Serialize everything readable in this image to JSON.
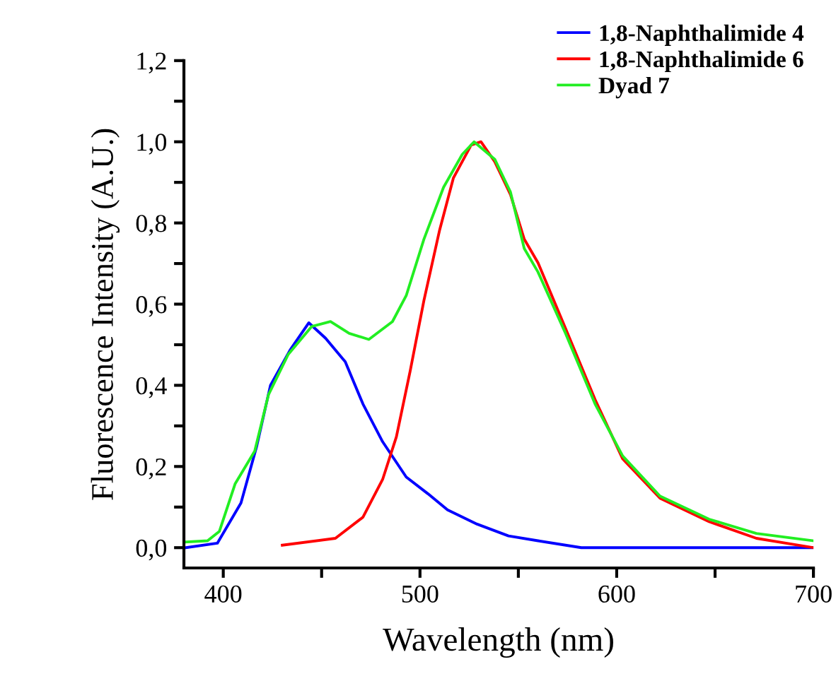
{
  "chart_data": {
    "type": "line",
    "xlabel": "Wavelength (nm)",
    "ylabel": "Fluorescence Intensity (A.U.)",
    "xlim": [
      380,
      700
    ],
    "ylim": [
      -0.05,
      1.2
    ],
    "xticks": [
      400,
      {
        "value": 450,
        "label": null
      },
      500,
      {
        "value": 550,
        "label": null
      },
      600,
      {
        "value": 650,
        "label": null
      },
      700
    ],
    "yticks": [
      {
        "value": 0,
        "label": "0,0"
      },
      {
        "value": 0.1,
        "label": null
      },
      {
        "value": 0.2,
        "label": "0,2"
      },
      {
        "value": 0.3,
        "label": null
      },
      {
        "value": 0.4,
        "label": "0,4"
      },
      {
        "value": 0.5,
        "label": null
      },
      {
        "value": 0.6,
        "label": "0,6"
      },
      {
        "value": 0.7,
        "label": null
      },
      {
        "value": 0.8,
        "label": "0,8"
      },
      {
        "value": 0.9,
        "label": null
      },
      {
        "value": 1.0,
        "label": "1,0"
      },
      {
        "value": 1.1,
        "label": null
      },
      {
        "value": 1.2,
        "label": "1,2"
      }
    ],
    "grid": false,
    "legend": "top right",
    "marker": "none",
    "line_style": "solid",
    "series": [
      {
        "name": "1,8-Naphthalimide 4",
        "color": "#0000ff",
        "x": [
          381,
          397,
          409,
          417,
          424,
          434,
          443.5,
          452,
          462,
          471,
          481,
          493,
          504,
          514,
          529,
          545,
          560,
          582,
          620,
          660,
          700
        ],
        "values": [
          0.0,
          0.011,
          0.11,
          0.25,
          0.4,
          0.487,
          0.554,
          0.516,
          0.458,
          0.354,
          0.261,
          0.174,
          0.133,
          0.093,
          0.058,
          0.029,
          0.017,
          0.0,
          0.0,
          0.0,
          0.0
        ]
      },
      {
        "name": "1,8-Naphthalimide 6",
        "color": "#ff0000",
        "x": [
          430,
          457,
          471,
          481,
          488,
          495,
          502,
          510,
          517,
          526,
          531,
          538,
          546,
          553,
          560,
          574,
          589,
          603,
          622,
          647,
          671,
          700
        ],
        "values": [
          0.006,
          0.023,
          0.075,
          0.168,
          0.273,
          0.435,
          0.609,
          0.783,
          0.911,
          0.992,
          1.0,
          0.951,
          0.87,
          0.76,
          0.702,
          0.54,
          0.365,
          0.219,
          0.122,
          0.064,
          0.023,
          0.0
        ]
      },
      {
        "name": "Dyad 7",
        "color": "#22ee22",
        "x": [
          381,
          392,
          398,
          406,
          416,
          423,
          433,
          445,
          454.5,
          464,
          474,
          486,
          493,
          502,
          512,
          521.5,
          527.5,
          538,
          546,
          553,
          560,
          574,
          589,
          603,
          622,
          647,
          671,
          700
        ],
        "values": [
          0.014,
          0.017,
          0.04,
          0.157,
          0.238,
          0.377,
          0.476,
          0.545,
          0.557,
          0.528,
          0.513,
          0.557,
          0.621,
          0.76,
          0.888,
          0.969,
          1.0,
          0.957,
          0.876,
          0.737,
          0.679,
          0.528,
          0.354,
          0.226,
          0.127,
          0.07,
          0.035,
          0.017
        ]
      }
    ]
  }
}
